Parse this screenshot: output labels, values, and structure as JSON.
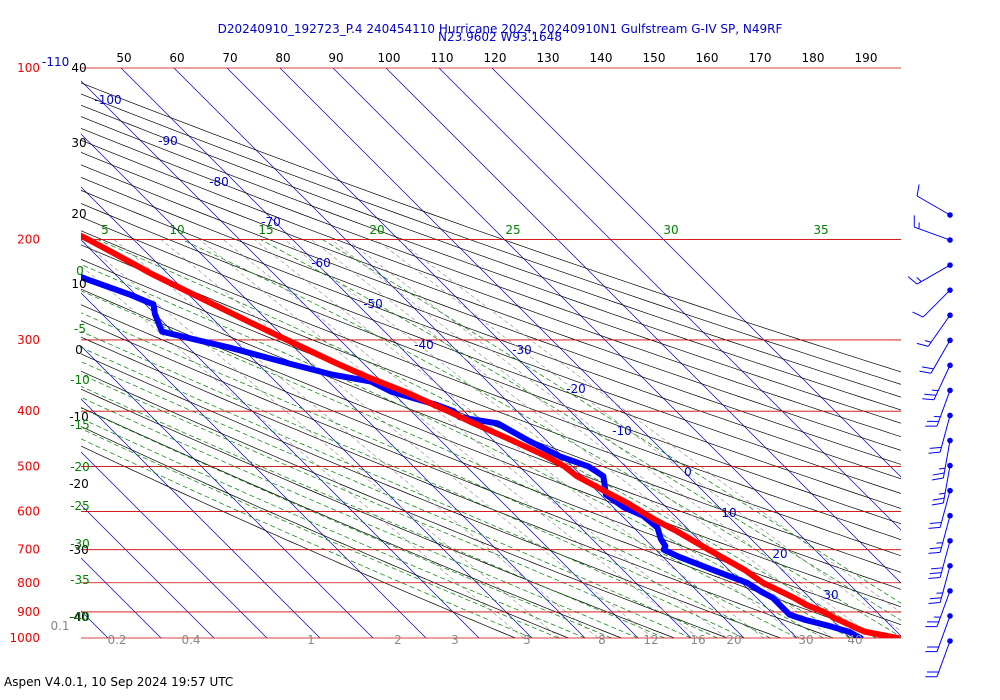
{
  "header": {
    "title_line1": "D20240910_192723_P.4 240454110 Hurricane 2024, 20240910N1 Gulfstream G-IV SP, N49RF",
    "title_line2": "N23.9602 W93.1648"
  },
  "footer": {
    "version": "Aspen V4.0.1, 10 Sep 2024  19:57 UTC"
  },
  "colors": {
    "temperature": "#ff0000",
    "dewpoint": "#0000ff",
    "isobar": "#cc0000",
    "isotherm": "#0000cc",
    "dry_adiabat": "#000000",
    "moist_adiabat": "#008000",
    "mixing_ratio": "#888888",
    "wind_barb": "#0000ff"
  },
  "chart_data": {
    "type": "skew-t",
    "pressure_labels": [
      "100",
      "200",
      "300",
      "400",
      "500",
      "600",
      "700",
      "800",
      "900",
      "1000"
    ],
    "pressure_levels": [
      100,
      200,
      300,
      400,
      500,
      600,
      700,
      800,
      900,
      1000
    ],
    "pressure_label_extra": "-110",
    "top_temperature_labels": [
      "50",
      "60",
      "70",
      "80",
      "90",
      "100",
      "110",
      "120",
      "130",
      "140",
      "150",
      "160",
      "170",
      "180",
      "190"
    ],
    "left_temperature_labels": [
      "40",
      "30",
      "20",
      "10",
      "0",
      "-10",
      "-20",
      "-30",
      "-40"
    ],
    "isotherm_labels": [
      "-100",
      "-90",
      "-80",
      "-70",
      "-60",
      "-50",
      "-40",
      "-30",
      "-20",
      "-10",
      "0",
      "10",
      "20",
      "30"
    ],
    "moist_adiabat_labels": [
      "5",
      "10",
      "15",
      "20",
      "25",
      "30",
      "35"
    ],
    "moist_adiabat_left_labels": [
      "0",
      "-5",
      "-10",
      "-15",
      "-20",
      "-25",
      "-30",
      "-35",
      "-40"
    ],
    "mixing_ratio_labels": [
      "0.1",
      "0.2",
      "0.4",
      "1",
      "2",
      "3",
      "5",
      "8",
      "12",
      "16",
      "20",
      "30",
      "40"
    ],
    "temperature_profile": [
      {
        "p": 1000,
        "t": 29.0
      },
      {
        "p": 990,
        "t": 27.0
      },
      {
        "p": 975,
        "t": 24.0
      },
      {
        "p": 960,
        "t": 23.0
      },
      {
        "p": 950,
        "t": 22.5
      },
      {
        "p": 925,
        "t": 21.0
      },
      {
        "p": 900,
        "t": 20.0
      },
      {
        "p": 875,
        "t": 18.0
      },
      {
        "p": 850,
        "t": 17.0
      },
      {
        "p": 800,
        "t": 14.0
      },
      {
        "p": 780,
        "t": 13.5
      },
      {
        "p": 760,
        "t": 13.0
      },
      {
        "p": 700,
        "t": 10.0
      },
      {
        "p": 650,
        "t": 7.5
      },
      {
        "p": 620,
        "t": 5.5
      },
      {
        "p": 580,
        "t": 3.5
      },
      {
        "p": 560,
        "t": 2.0
      },
      {
        "p": 520,
        "t": -1.0
      },
      {
        "p": 500,
        "t": -1.5
      },
      {
        "p": 480,
        "t": -3.0
      },
      {
        "p": 450,
        "t": -6.5
      },
      {
        "p": 420,
        "t": -10.5
      },
      {
        "p": 400,
        "t": -13.0
      },
      {
        "p": 370,
        "t": -17.5
      },
      {
        "p": 350,
        "t": -21.5
      },
      {
        "p": 330,
        "t": -25.0
      },
      {
        "p": 300,
        "t": -30.0
      },
      {
        "p": 280,
        "t": -33.5
      },
      {
        "p": 250,
        "t": -39.0
      },
      {
        "p": 230,
        "t": -43.0
      },
      {
        "p": 210,
        "t": -46.5
      },
      {
        "p": 200,
        "t": -48.5
      },
      {
        "p": 190,
        "t": -51.0
      },
      {
        "p": 180,
        "t": -53.0
      }
    ],
    "dewpoint_profile": [
      {
        "p": 1000,
        "t": 22.0
      },
      {
        "p": 990,
        "t": 21.5
      },
      {
        "p": 975,
        "t": 21.0
      },
      {
        "p": 950,
        "t": 18.0
      },
      {
        "p": 930,
        "t": 15.0
      },
      {
        "p": 910,
        "t": 13.0
      },
      {
        "p": 880,
        "t": 13.0
      },
      {
        "p": 850,
        "t": 13.0
      },
      {
        "p": 830,
        "t": 12.0
      },
      {
        "p": 800,
        "t": 11.0
      },
      {
        "p": 760,
        "t": 7.0
      },
      {
        "p": 720,
        "t": 3.0
      },
      {
        "p": 700,
        "t": 1.5
      },
      {
        "p": 690,
        "t": 2.5
      },
      {
        "p": 670,
        "t": 3.0
      },
      {
        "p": 640,
        "t": 4.5
      },
      {
        "p": 610,
        "t": 4.0
      },
      {
        "p": 590,
        "t": 2.0
      },
      {
        "p": 560,
        "t": 1.0
      },
      {
        "p": 540,
        "t": 2.5
      },
      {
        "p": 520,
        "t": 4.0
      },
      {
        "p": 500,
        "t": 3.0
      },
      {
        "p": 480,
        "t": -0.5
      },
      {
        "p": 450,
        "t": -3.5
      },
      {
        "p": 420,
        "t": -6.0
      },
      {
        "p": 410,
        "t": -12.0
      },
      {
        "p": 400,
        "t": -12.0
      },
      {
        "p": 390,
        "t": -14.0
      },
      {
        "p": 370,
        "t": -20.0
      },
      {
        "p": 355,
        "t": -22.0
      },
      {
        "p": 345,
        "t": -28.0
      },
      {
        "p": 330,
        "t": -34.0
      },
      {
        "p": 310,
        "t": -42.0
      },
      {
        "p": 300,
        "t": -47.0
      },
      {
        "p": 290,
        "t": -52.0
      },
      {
        "p": 270,
        "t": -50.0
      },
      {
        "p": 260,
        "t": -48.5
      },
      {
        "p": 250,
        "t": -51.0
      },
      {
        "p": 230,
        "t": -58.0
      },
      {
        "p": 210,
        "t": -67.0
      }
    ],
    "wind_barbs": [
      {
        "p": 180,
        "speed": 10,
        "dir": 300
      },
      {
        "p": 200,
        "speed": 15,
        "dir": 290
      },
      {
        "p": 230,
        "speed": 15,
        "dir": 240
      },
      {
        "p": 260,
        "speed": 10,
        "dir": 225
      },
      {
        "p": 300,
        "speed": 15,
        "dir": 215
      },
      {
        "p": 340,
        "speed": 20,
        "dir": 210
      },
      {
        "p": 380,
        "speed": 25,
        "dir": 205
      },
      {
        "p": 420,
        "speed": 25,
        "dir": 200
      },
      {
        "p": 470,
        "speed": 20,
        "dir": 195
      },
      {
        "p": 520,
        "speed": 25,
        "dir": 190
      },
      {
        "p": 580,
        "speed": 25,
        "dir": 190
      },
      {
        "p": 640,
        "speed": 20,
        "dir": 195
      },
      {
        "p": 700,
        "speed": 25,
        "dir": 195
      },
      {
        "p": 760,
        "speed": 30,
        "dir": 195
      },
      {
        "p": 830,
        "speed": 25,
        "dir": 195
      },
      {
        "p": 900,
        "speed": 25,
        "dir": 200
      },
      {
        "p": 960,
        "speed": 20,
        "dir": 200
      },
      {
        "p": 1000,
        "speed": 20,
        "dir": 200
      }
    ]
  }
}
